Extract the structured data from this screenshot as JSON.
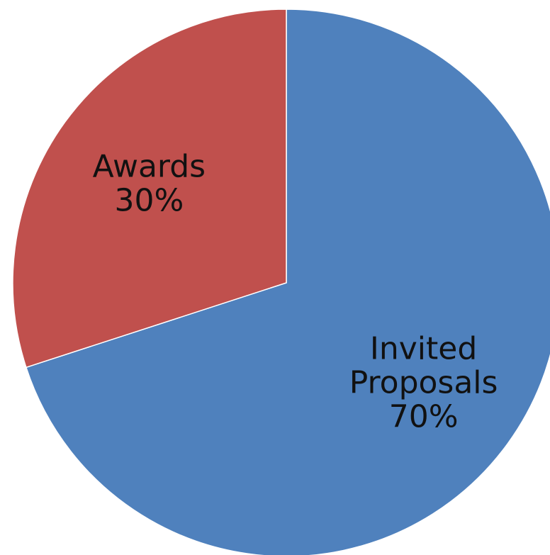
{
  "chart_data": {
    "type": "pie",
    "title": "",
    "start_angle_deg": 0,
    "direction": "clockwise",
    "slices": [
      {
        "label": "Invited Proposals",
        "label_lines": [
          "Invited",
          "Proposals"
        ],
        "value": 70,
        "display": "70%",
        "color": "#4F81BD"
      },
      {
        "label": "Awards",
        "label_lines": [
          "Awards"
        ],
        "value": 30,
        "display": "30%",
        "color": "#C0504D"
      }
    ]
  }
}
